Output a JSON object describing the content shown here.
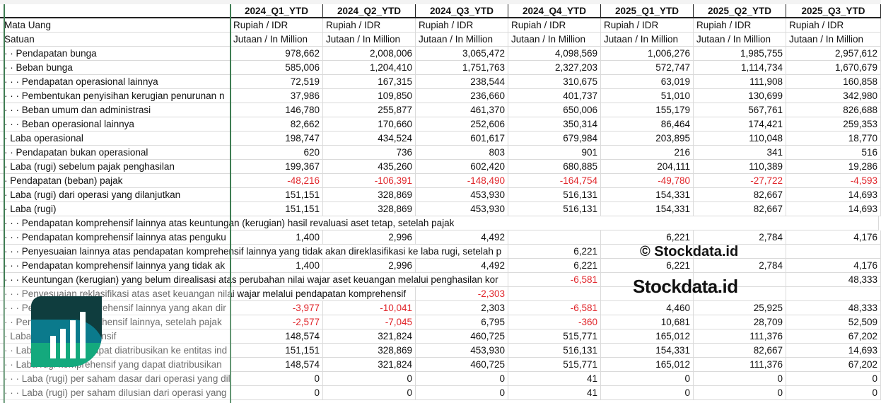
{
  "columns": [
    "2024_Q1_YTD",
    "2024_Q2_YTD",
    "2024_Q3_YTD",
    "2024_Q4_YTD",
    "2025_Q1_YTD",
    "2025_Q2_YTD",
    "2025_Q3_YTD"
  ],
  "rows": [
    {
      "label": "Mata Uang",
      "values": [
        "Rupiah / IDR",
        "Rupiah / IDR",
        "Rupiah / IDR",
        "Rupiah / IDR",
        "Rupiah / IDR",
        "Rupiah / IDR",
        "Rupiah / IDR"
      ],
      "text": true
    },
    {
      "label": "Satuan",
      "values": [
        "Jutaan / In Million",
        "Jutaan / In Million",
        "Jutaan / In Million",
        "Jutaan / In Million",
        "Jutaan / In Million",
        "Jutaan / In Million",
        "Jutaan / In Million"
      ],
      "text": true
    },
    {
      "label": "· · Pendapatan bunga",
      "values": [
        "978,662",
        "2,008,006",
        "3,065,472",
        "4,098,569",
        "1,006,276",
        "1,985,755",
        "2,957,612"
      ]
    },
    {
      "label": "· · Beban bunga",
      "values": [
        "585,006",
        "1,204,410",
        "1,751,763",
        "2,327,203",
        "572,747",
        "1,114,734",
        "1,670,679"
      ]
    },
    {
      "label": "· · · Pendapatan operasional lainnya",
      "values": [
        "72,519",
        "167,315",
        "238,544",
        "310,675",
        "63,019",
        "111,908",
        "160,858"
      ]
    },
    {
      "label": "· · · Pembentukan penyisihan kerugian penurunan n",
      "values": [
        "37,986",
        "109,850",
        "236,660",
        "401,737",
        "51,010",
        "130,699",
        "342,980"
      ]
    },
    {
      "label": "· · · Beban umum dan administrasi",
      "values": [
        "146,780",
        "255,877",
        "461,370",
        "650,006",
        "155,179",
        "567,761",
        "826,688"
      ]
    },
    {
      "label": "· · · Beban operasional lainnya",
      "values": [
        "82,662",
        "170,660",
        "252,606",
        "350,314",
        "86,464",
        "174,421",
        "259,353"
      ]
    },
    {
      "label": "· Laba operasional",
      "values": [
        "198,747",
        "434,524",
        "601,617",
        "679,984",
        "203,895",
        "110,048",
        "18,770"
      ]
    },
    {
      "label": "· · Pendapatan bukan operasional",
      "values": [
        "620",
        "736",
        "803",
        "901",
        "216",
        "341",
        "516"
      ]
    },
    {
      "label": "· Laba (rugi) sebelum pajak penghasilan",
      "values": [
        "199,367",
        "435,260",
        "602,420",
        "680,885",
        "204,111",
        "110,389",
        "19,286"
      ]
    },
    {
      "label": "· Pendapatan (beban) pajak",
      "values": [
        "-48,216",
        "-106,391",
        "-148,490",
        "-164,754",
        "-49,780",
        "-27,722",
        "-4,593"
      ]
    },
    {
      "label": "· Laba (rugi) dari operasi yang dilanjutkan",
      "values": [
        "151,151",
        "328,869",
        "453,930",
        "516,131",
        "154,331",
        "82,667",
        "14,693"
      ]
    },
    {
      "label": "· Laba (rugi)",
      "values": [
        "151,151",
        "328,869",
        "453,930",
        "516,131",
        "154,331",
        "82,667",
        "14,693"
      ]
    },
    {
      "label": "· · · Pendapatan komprehensif lainnya atas keuntungan (kerugian) hasil revaluasi aset tetap, setelah pajak",
      "values": [
        "",
        "",
        "",
        "",
        "",
        "",
        ""
      ]
    },
    {
      "label": "· · · Pendapatan komprehensif lainnya atas penguku",
      "values": [
        "1,400",
        "2,996",
        "4,492",
        "",
        "6,221",
        "2,784",
        "4,176"
      ]
    },
    {
      "label": "· · · Penyesuaian lainnya atas pendapatan komprehensif lainnya yang tidak akan direklasifikasi ke laba rugi, setelah p",
      "values": [
        "",
        "",
        "",
        "6,221",
        "",
        "",
        ""
      ]
    },
    {
      "label": "· · · Pendapatan komprehensif lainnya yang tidak ak",
      "values": [
        "1,400",
        "2,996",
        "4,492",
        "6,221",
        "6,221",
        "2,784",
        "4,176"
      ]
    },
    {
      "label": "· · · Keuntungan (kerugian) yang belum direalisasi atas perubahan nilai wajar aset keuangan melalui penghasilan kor",
      "values": [
        "",
        "",
        "",
        "-6,581",
        "",
        "",
        "48,333"
      ]
    },
    {
      "label": "· · · Penyesuaian reklasifikasi atas aset keuangan nilai wajar melalui pendapatan komprehensif",
      "values": [
        "",
        "",
        "-2,303",
        "",
        "",
        "",
        ""
      ]
    },
    {
      "label": "· · · Pendapatan komprehensif lainnya yang akan dir",
      "values": [
        "-3,977",
        "-10,041",
        "2,303",
        "-6,581",
        "4,460",
        "25,925",
        "48,333"
      ]
    },
    {
      "label": "· · Pendapatan komprehensif lainnya, setelah pajak",
      "values": [
        "-2,577",
        "-7,045",
        "6,795",
        "-360",
        "10,681",
        "28,709",
        "52,509"
      ]
    },
    {
      "label": "· Laba (rugi) komprehensif",
      "values": [
        "148,574",
        "321,824",
        "460,725",
        "515,771",
        "165,012",
        "111,376",
        "67,202"
      ]
    },
    {
      "label": "· · Laba (rugi) yang dapat diatribusikan ke entitas ind",
      "values": [
        "151,151",
        "328,869",
        "453,930",
        "516,131",
        "154,331",
        "82,667",
        "14,693"
      ]
    },
    {
      "label": "· · Laba rugi komprehensif yang dapat diatribusikan",
      "values": [
        "148,574",
        "321,824",
        "460,725",
        "515,771",
        "165,012",
        "111,376",
        "67,202"
      ]
    },
    {
      "label": "· · · Laba (rugi) per saham dasar dari operasi yang dil",
      "values": [
        "0",
        "0",
        "0",
        "41",
        "0",
        "0",
        "0"
      ]
    },
    {
      "label": "· · · Laba (rugi) per saham dilusian dari operasi yang",
      "values": [
        "0",
        "0",
        "0",
        "41",
        "0",
        "0",
        "0"
      ]
    }
  ],
  "watermark": {
    "copyright": "© Stockdata.id",
    "brand": "Stockdata.id"
  },
  "colors": {
    "negative": "#e0262b",
    "logo_top": "#0f3d3e",
    "logo_mid": "#0b7a8c",
    "logo_bottom": "#14a97d"
  }
}
